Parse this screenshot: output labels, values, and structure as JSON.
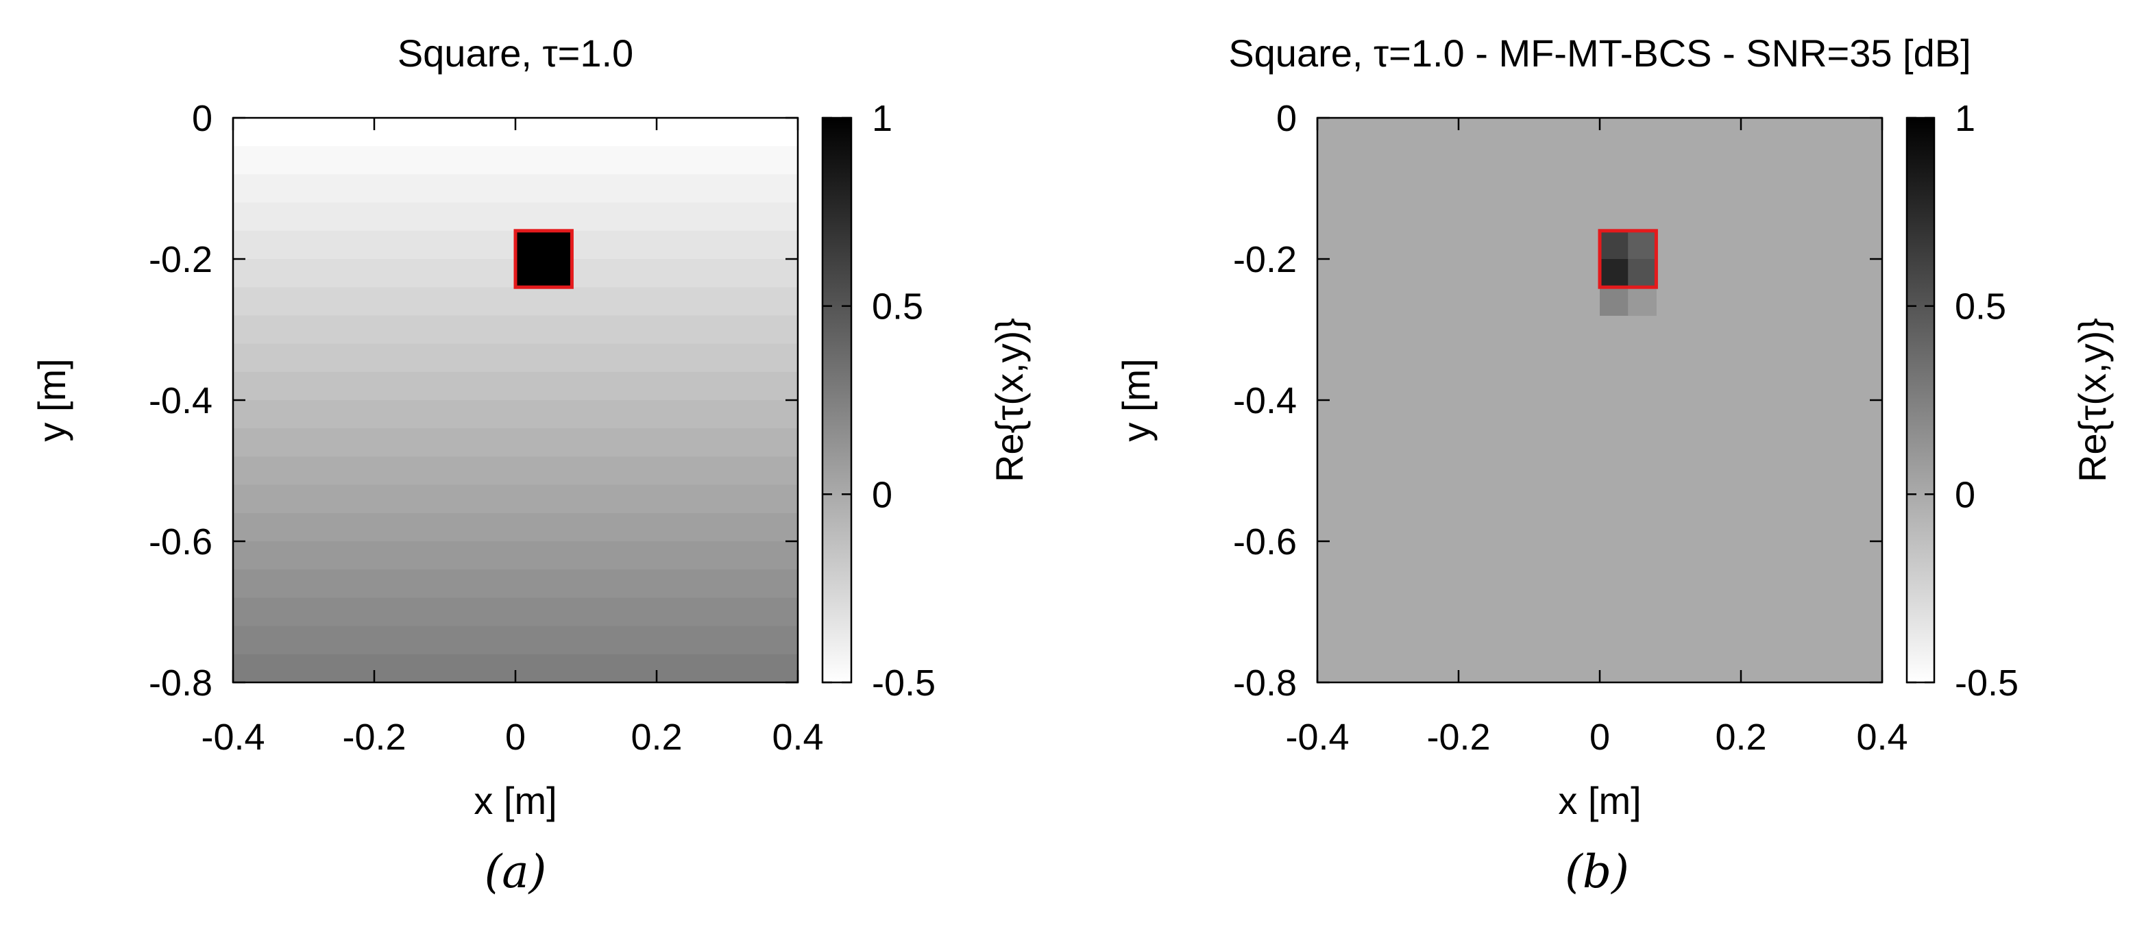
{
  "chart_data": [
    {
      "type": "heatmap",
      "title": "Square, τ=1.0",
      "xlabel": "x [m]",
      "ylabel": "y [m]",
      "xlim": [
        -0.4,
        0.4
      ],
      "ylim": [
        -0.8,
        0
      ],
      "x_ticks": [
        -0.4,
        -0.2,
        0,
        0.2,
        0.4
      ],
      "y_ticks": [
        0,
        -0.2,
        -0.4,
        -0.6,
        -0.8
      ],
      "x_tick_labels": [
        "-0.4",
        "-0.2",
        "0",
        "0.2",
        "0.4"
      ],
      "y_tick_labels": [
        "0",
        "-0.2",
        "-0.4",
        "-0.6",
        "-0.8"
      ],
      "colorbar": {
        "label": "Re{τ(x,y)}",
        "range": [
          -0.5,
          1
        ],
        "ticks": [
          1,
          0.5,
          0,
          -0.5
        ],
        "tick_labels": [
          "1",
          "0.5",
          "0",
          "-0.5"
        ]
      },
      "background_rows": {
        "y_step": 0.04,
        "values": [
          -0.5,
          -0.46,
          -0.42,
          -0.38,
          -0.34,
          -0.3,
          -0.26,
          -0.22,
          -0.18,
          -0.14,
          -0.1,
          -0.06,
          -0.02,
          0.02,
          0.06,
          0.1,
          0.14,
          0.18,
          0.22,
          0.26
        ]
      },
      "cells": [
        {
          "x": 0.0,
          "y": -0.16,
          "w": 0.04,
          "h": 0.04,
          "value": 1.0
        },
        {
          "x": 0.04,
          "y": -0.16,
          "w": 0.04,
          "h": 0.04,
          "value": 1.0
        },
        {
          "x": 0.0,
          "y": -0.2,
          "w": 0.04,
          "h": 0.04,
          "value": 1.0
        },
        {
          "x": 0.04,
          "y": -0.2,
          "w": 0.04,
          "h": 0.04,
          "value": 1.0
        }
      ],
      "outline": {
        "x": 0.0,
        "y": -0.16,
        "w": 0.08,
        "h": 0.08,
        "color": "#e41a1c"
      },
      "caption": "(a)"
    },
    {
      "type": "heatmap",
      "title": "Square, τ=1.0 - MF-MT-BCS - SNR=35 [dB]",
      "xlabel": "x [m]",
      "ylabel": "y [m]",
      "xlim": [
        -0.4,
        0.4
      ],
      "ylim": [
        -0.8,
        0
      ],
      "x_ticks": [
        -0.4,
        -0.2,
        0,
        0.2,
        0.4
      ],
      "y_ticks": [
        0,
        -0.2,
        -0.4,
        -0.6,
        -0.8
      ],
      "x_tick_labels": [
        "-0.4",
        "-0.2",
        "0",
        "0.2",
        "0.4"
      ],
      "y_tick_labels": [
        "0",
        "-0.2",
        "-0.4",
        "-0.6",
        "-0.8"
      ],
      "colorbar": {
        "label": "Re{τ(x,y)}",
        "range": [
          -0.5,
          1
        ],
        "ticks": [
          1,
          0.5,
          0,
          -0.5
        ],
        "tick_labels": [
          "1",
          "0.5",
          "0",
          "-0.5"
        ]
      },
      "background_value": 0.0,
      "cells": [
        {
          "x": 0.0,
          "y": -0.16,
          "w": 0.04,
          "h": 0.04,
          "value": 0.62
        },
        {
          "x": 0.04,
          "y": -0.16,
          "w": 0.04,
          "h": 0.04,
          "value": 0.45
        },
        {
          "x": 0.0,
          "y": -0.2,
          "w": 0.04,
          "h": 0.04,
          "value": 0.78
        },
        {
          "x": 0.04,
          "y": -0.2,
          "w": 0.04,
          "h": 0.04,
          "value": 0.52
        },
        {
          "x": 0.0,
          "y": -0.24,
          "w": 0.04,
          "h": 0.04,
          "value": 0.22
        },
        {
          "x": 0.04,
          "y": -0.24,
          "w": 0.04,
          "h": 0.04,
          "value": 0.1
        }
      ],
      "outline": {
        "x": 0.0,
        "y": -0.16,
        "w": 0.08,
        "h": 0.08,
        "color": "#e41a1c"
      },
      "caption": "(b)"
    }
  ]
}
